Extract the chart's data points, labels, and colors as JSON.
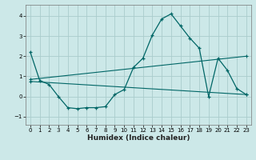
{
  "xlabel": "Humidex (Indice chaleur)",
  "bg_color": "#cce8e8",
  "grid_color": "#aacccc",
  "line_color": "#006666",
  "xlim": [
    -0.5,
    23.5
  ],
  "ylim": [
    -1.4,
    4.55
  ],
  "xticks": [
    0,
    1,
    2,
    3,
    4,
    5,
    6,
    7,
    8,
    9,
    10,
    11,
    12,
    13,
    14,
    15,
    16,
    17,
    18,
    19,
    20,
    21,
    22,
    23
  ],
  "yticks": [
    -1,
    0,
    1,
    2,
    3,
    4
  ],
  "series1_x": [
    0,
    1,
    2,
    3,
    4,
    5,
    6,
    7,
    8,
    9,
    10,
    11,
    12,
    13,
    14,
    15,
    16,
    17,
    18,
    19,
    20,
    21,
    22,
    23
  ],
  "series1_y": [
    2.2,
    0.8,
    0.6,
    0.0,
    -0.55,
    -0.6,
    -0.55,
    -0.55,
    -0.5,
    0.1,
    0.35,
    1.45,
    1.9,
    3.05,
    3.85,
    4.1,
    3.5,
    2.9,
    2.4,
    0.0,
    1.9,
    1.3,
    0.4,
    0.1
  ],
  "series2_x": [
    0,
    23
  ],
  "series2_y": [
    0.85,
    2.0
  ],
  "series3_x": [
    0,
    23
  ],
  "series3_y": [
    0.75,
    0.1
  ]
}
